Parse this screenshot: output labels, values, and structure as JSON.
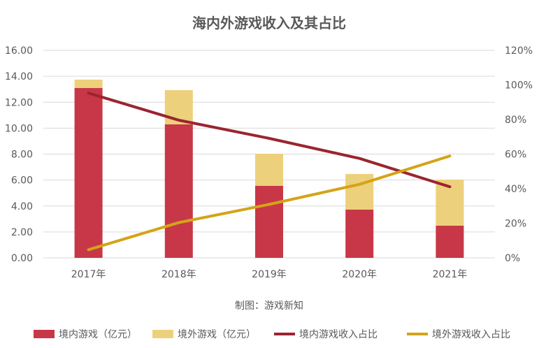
{
  "chart_data": {
    "type": "bar",
    "title": "海内外游戏收入及其占比",
    "source": "制图：游戏新知",
    "categories": [
      "2017年",
      "2018年",
      "2019年",
      "2020年",
      "2021年"
    ],
    "left_axis": {
      "ylim": [
        0,
        16
      ],
      "ticks": [
        "0.00",
        "2.00",
        "4.00",
        "6.00",
        "8.00",
        "10.00",
        "12.00",
        "14.00",
        "16.00"
      ]
    },
    "right_axis": {
      "ylim": [
        0,
        120
      ],
      "ticks": [
        "0%",
        "20%",
        "40%",
        "60%",
        "80%",
        "100%",
        "120%"
      ]
    },
    "grid": true,
    "legend_position": "bottom",
    "series": [
      {
        "name": "境内游戏（亿元）",
        "kind": "stacked-bar",
        "axis": "left",
        "color": "#C83747",
        "values": [
          13.1,
          10.29,
          5.55,
          3.72,
          2.48
        ]
      },
      {
        "name": "境外游戏（亿元）",
        "kind": "stacked-bar",
        "axis": "left",
        "color": "#EDD07B",
        "values": [
          0.64,
          2.64,
          2.48,
          2.75,
          3.55
        ]
      },
      {
        "name": "境内游戏收入占比",
        "kind": "line",
        "axis": "right",
        "color": "#9A2530",
        "values": [
          95.3,
          79.6,
          69.1,
          57.5,
          41.1
        ]
      },
      {
        "name": "境外游戏收入占比",
        "kind": "line",
        "axis": "right",
        "color": "#D4A417",
        "values": [
          4.7,
          20.4,
          30.9,
          42.5,
          58.9
        ]
      }
    ]
  }
}
